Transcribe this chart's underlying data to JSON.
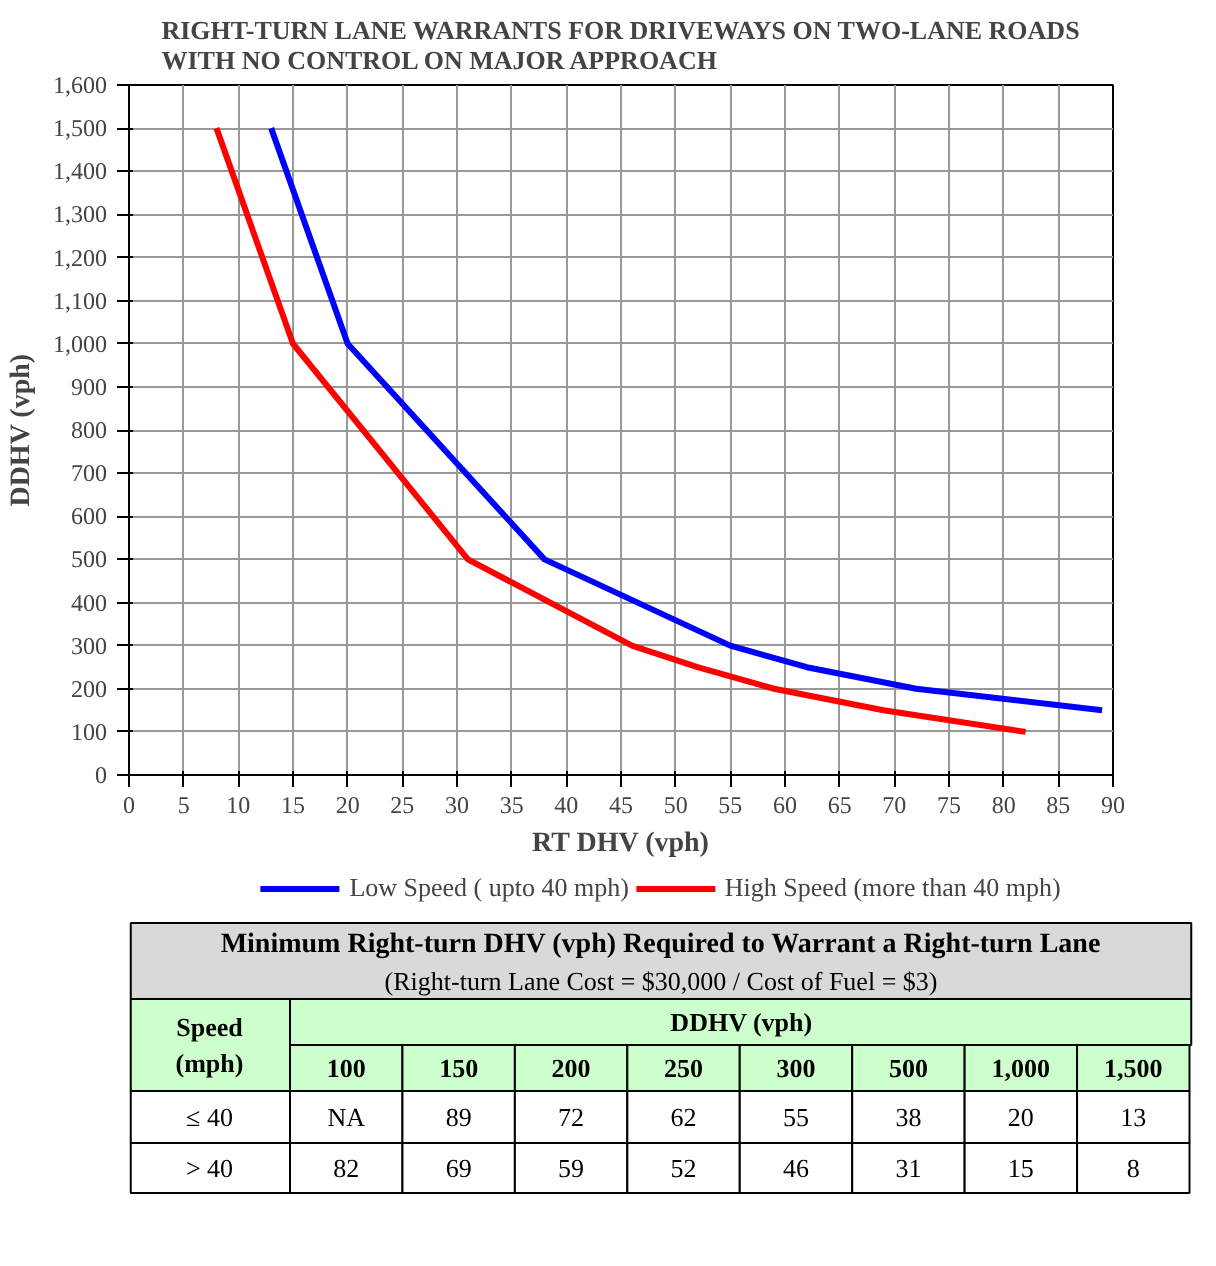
{
  "chart_data": {
    "type": "line",
    "title": "RIGHT-TURN LANE WARRANTS FOR DRIVEWAYS ON TWO-LANE ROADS WITH NO CONTROL ON MAJOR APPROACH",
    "xlabel": "RT DHV (vph)",
    "ylabel": "DDHV (vph)",
    "series": [
      {
        "name": "Low Speed ( upto 40 mph)",
        "color": "#0000ff",
        "x": [
          89,
          72,
          62,
          55,
          38,
          20,
          13
        ],
        "values": [
          150,
          200,
          250,
          300,
          500,
          1000,
          1500
        ]
      },
      {
        "name": "High Speed (more than 40 mph)",
        "color": "#ff0000",
        "x": [
          82,
          69,
          59,
          52,
          46,
          31,
          15,
          8
        ],
        "values": [
          100,
          150,
          200,
          250,
          300,
          500,
          1000,
          1500
        ]
      }
    ],
    "xlim": [
      0,
      90
    ],
    "xticks": [
      0,
      5,
      10,
      15,
      20,
      25,
      30,
      35,
      40,
      45,
      50,
      55,
      60,
      65,
      70,
      75,
      80,
      85,
      90
    ],
    "ylim": [
      0,
      1600
    ],
    "yticks": [
      0,
      100,
      200,
      300,
      400,
      500,
      600,
      700,
      800,
      900,
      {
        "value": 1000,
        "label": "1,000"
      },
      {
        "value": 1100,
        "label": "1,100"
      },
      {
        "value": 1200,
        "label": "1,200"
      },
      {
        "value": 1300,
        "label": "1,300"
      },
      {
        "value": 1400,
        "label": "1,400"
      },
      {
        "value": 1500,
        "label": "1,500"
      },
      {
        "value": 1600,
        "label": "1,600"
      }
    ],
    "grid": true,
    "legend": "bottom",
    "marker": "none",
    "line_style": "solid",
    "annotations": [
      "Minimum Right-turn DHV (vph) Required to Warrant a Right-turn Lane",
      "(Right-turn Lane Cost = $30,000 / Cost of Fuel = $3)",
      "Speed (mph)",
      "DDHV (vph)",
      "≤ 40",
      "> 40",
      "100",
      "150",
      "200",
      "250",
      "300",
      "500",
      "1,000",
      "1,500",
      "NA",
      "89",
      "72",
      "62",
      "55",
      "38",
      "20",
      "13",
      "82",
      "69",
      "59",
      "52",
      "46",
      "31",
      "15",
      "8"
    ]
  }
}
